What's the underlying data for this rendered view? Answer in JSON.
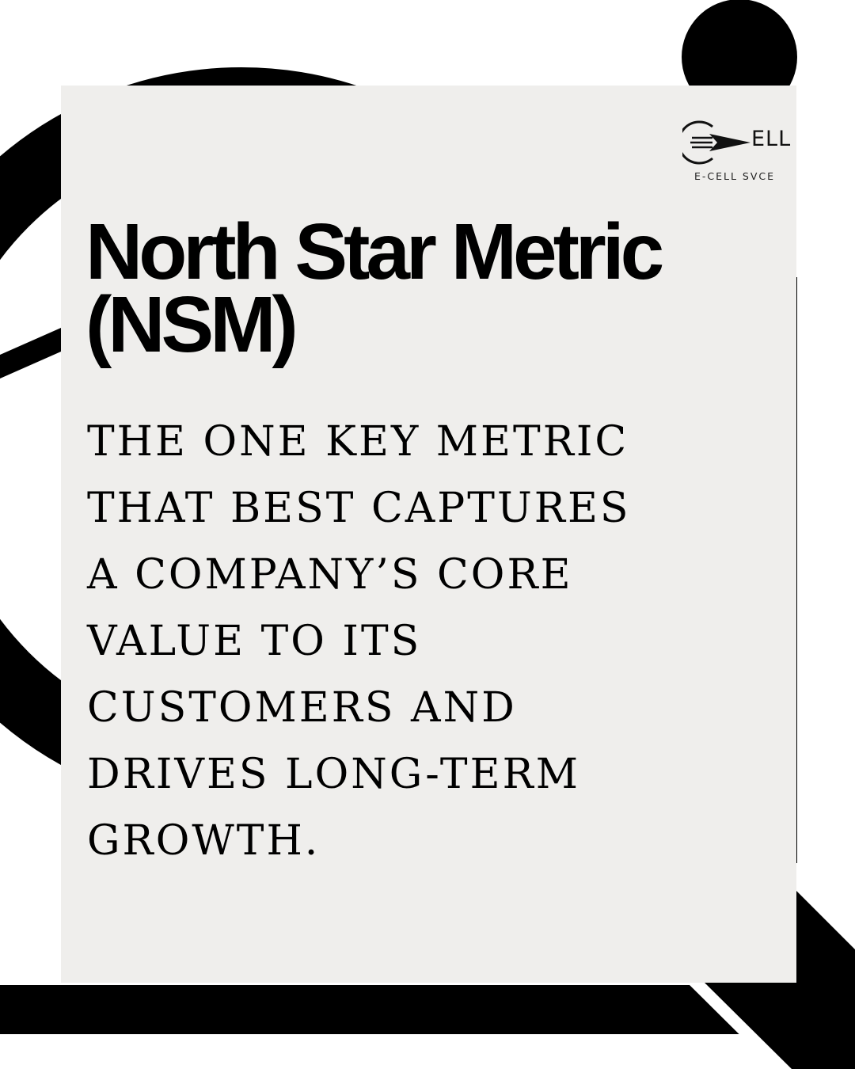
{
  "logo": {
    "wordmark": "ELL",
    "caption": "E-CELL SVCE"
  },
  "title": {
    "lines": [
      "North Star Metric",
      "(NSM)"
    ]
  },
  "definition": {
    "lines": [
      "THE ONE KEY METRIC",
      "THAT BEST CAPTURES",
      "A COMPANY’S CORE",
      "VALUE TO ITS",
      "CUSTOMERS AND",
      "DRIVES LONG-TERM",
      "GROWTH."
    ]
  },
  "colors": {
    "background": "#ffffff",
    "card": "#efeeec",
    "ink": "#000000"
  }
}
